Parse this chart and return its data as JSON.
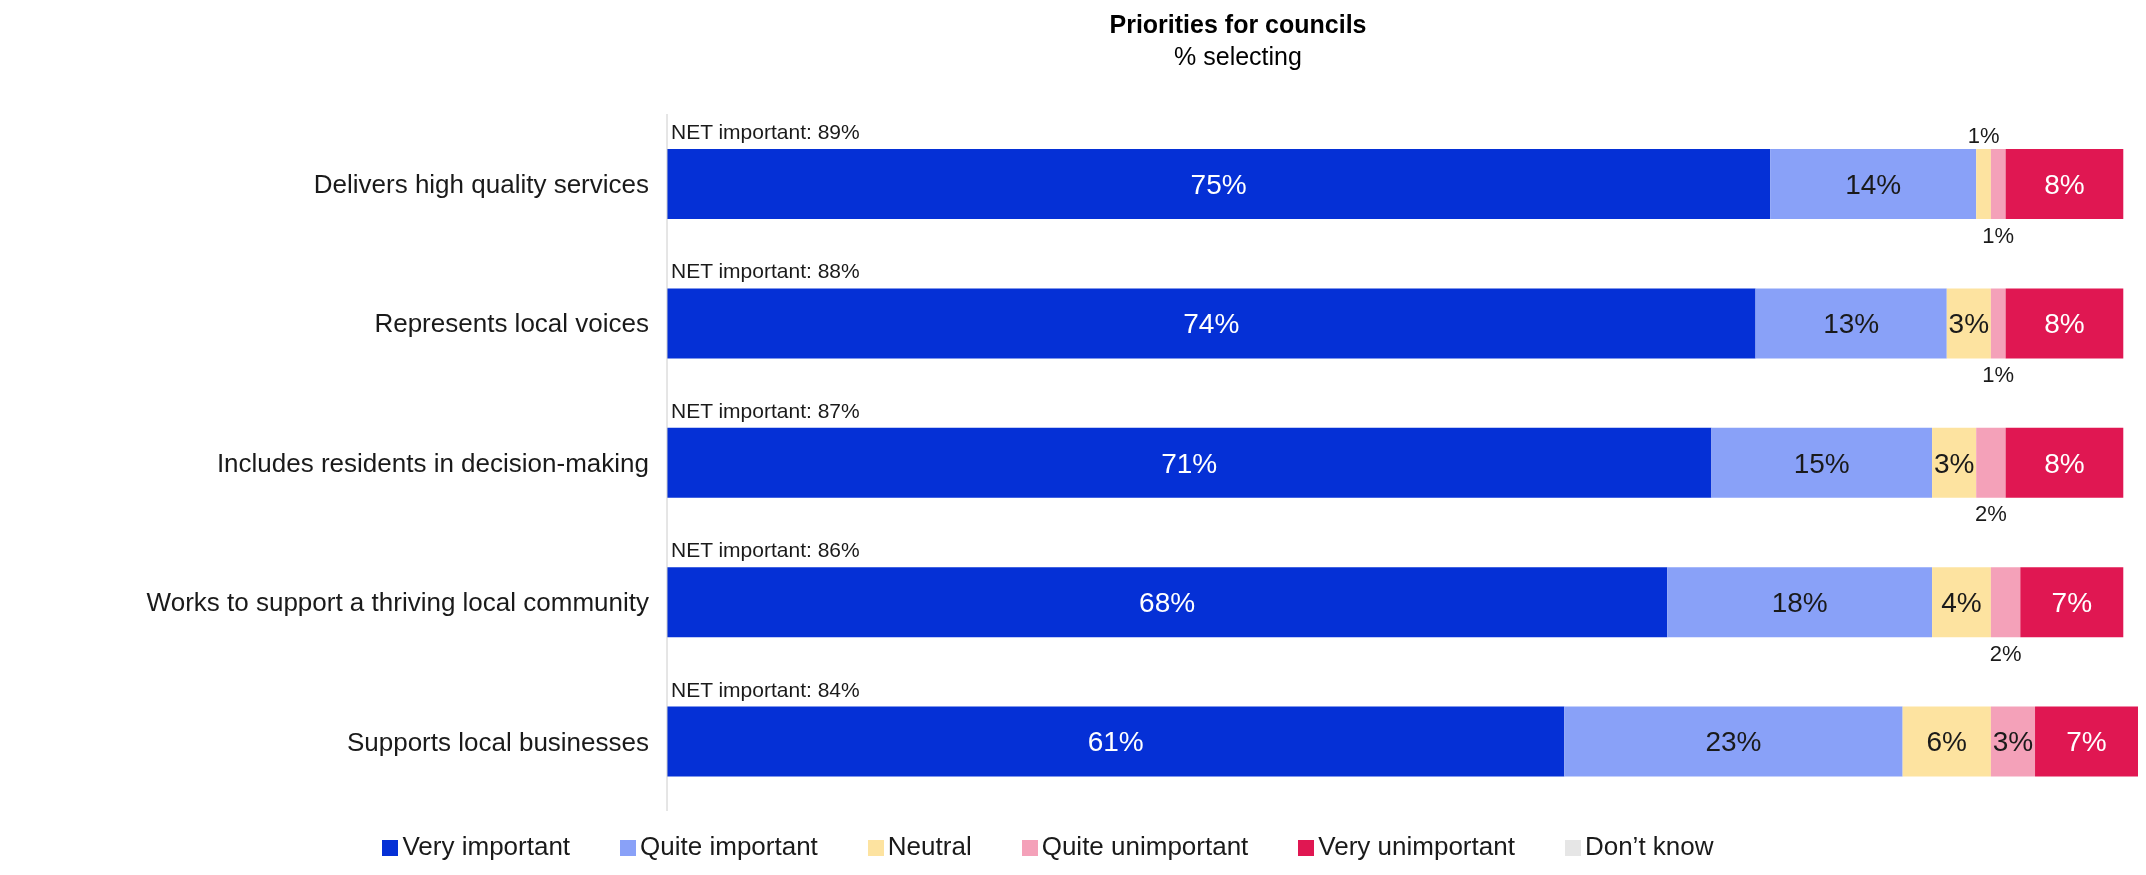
{
  "chart_data": {
    "type": "bar",
    "orientation": "horizontal",
    "stacked": true,
    "title": "Priorities for councils",
    "subtitle": "% selecting",
    "categories": [
      "Delivers high quality services",
      "Represents local voices",
      "Includes residents in decision-making",
      "Works to support a thriving local community",
      "Supports local businesses"
    ],
    "series": [
      {
        "name": "Very important",
        "color": "#0530d6",
        "values": [
          75,
          74,
          71,
          68,
          61
        ],
        "value_labels": [
          "75%",
          "74%",
          "71%",
          "68%",
          "61%"
        ]
      },
      {
        "name": "Quite important",
        "color": "#89a1f8",
        "values": [
          14,
          13,
          15,
          18,
          23
        ],
        "value_labels": [
          "14%",
          "13%",
          "15%",
          "18%",
          "23%"
        ]
      },
      {
        "name": "Neutral",
        "color": "#fde3a0",
        "values": [
          1,
          3,
          3,
          4,
          6
        ],
        "value_labels": [
          "1%",
          "3%",
          "3%",
          "4%",
          "6%"
        ]
      },
      {
        "name": "Quite unimportant",
        "color": "#f4a1b9",
        "values": [
          1,
          1,
          2,
          2,
          3
        ],
        "value_labels": [
          "1%",
          "1%",
          "2%",
          "2%",
          "3%"
        ]
      },
      {
        "name": "Very unimportant",
        "color": "#e01752",
        "values": [
          8,
          8,
          8,
          7,
          7
        ],
        "value_labels": [
          "8%",
          "8%",
          "8%",
          "7%",
          "7%"
        ]
      },
      {
        "name": "Don’t know",
        "color": "#e6e6e6",
        "values": [
          0,
          0,
          0,
          0,
          0
        ],
        "value_labels": [
          null,
          null,
          null,
          null,
          null
        ]
      }
    ],
    "xlim": [
      0,
      100
    ],
    "tick_labels": "y",
    "grid": false,
    "legend": "bottom",
    "annotations": [
      "NET important: 89%",
      "NET important: 88%",
      "NET important: 87%",
      "NET important: 86%",
      "NET important: 84%"
    ]
  }
}
